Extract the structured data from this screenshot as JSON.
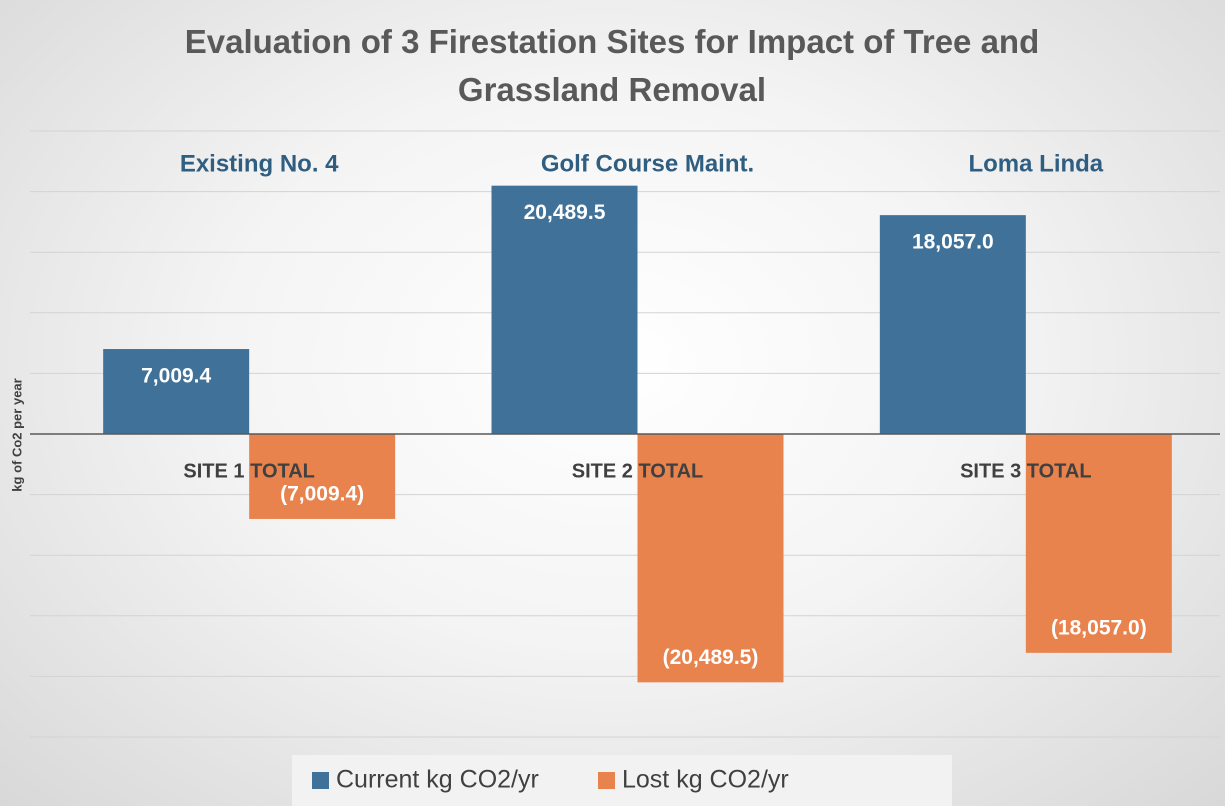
{
  "chart_data": {
    "type": "bar",
    "title": "Evaluation of 3 Firestation Sites for Impact of Tree and Grassland Removal",
    "y_label": "kg of Co2 per year",
    "categories": [
      "SITE 1 TOTAL",
      "SITE 2 TOTAL",
      "SITE 3 TOTAL"
    ],
    "annotations": [
      "Existing No. 4",
      "Golf Course Maint.",
      "Loma Linda"
    ],
    "series": [
      {
        "name": "Current kg CO2/yr",
        "color": "#3f7199",
        "values": [
          7009.4,
          20489.5,
          18057.0
        ],
        "value_labels": [
          "7,009.4",
          "20,489.5",
          "18,057.0"
        ]
      },
      {
        "name": "Lost kg CO2/yr",
        "color": "#e8834e",
        "values": [
          -7009.4,
          -20489.5,
          -18057.0
        ],
        "value_labels": [
          "(7,009.4)",
          "(20,489.5)",
          "(18,057.0)"
        ]
      }
    ],
    "ylim": [
      -25000,
      25000
    ],
    "yticks": [
      -25000,
      -20000,
      -15000,
      -10000,
      -5000,
      0,
      5000,
      10000,
      15000,
      20000,
      25000
    ],
    "grid": true,
    "legend": "bottom"
  }
}
